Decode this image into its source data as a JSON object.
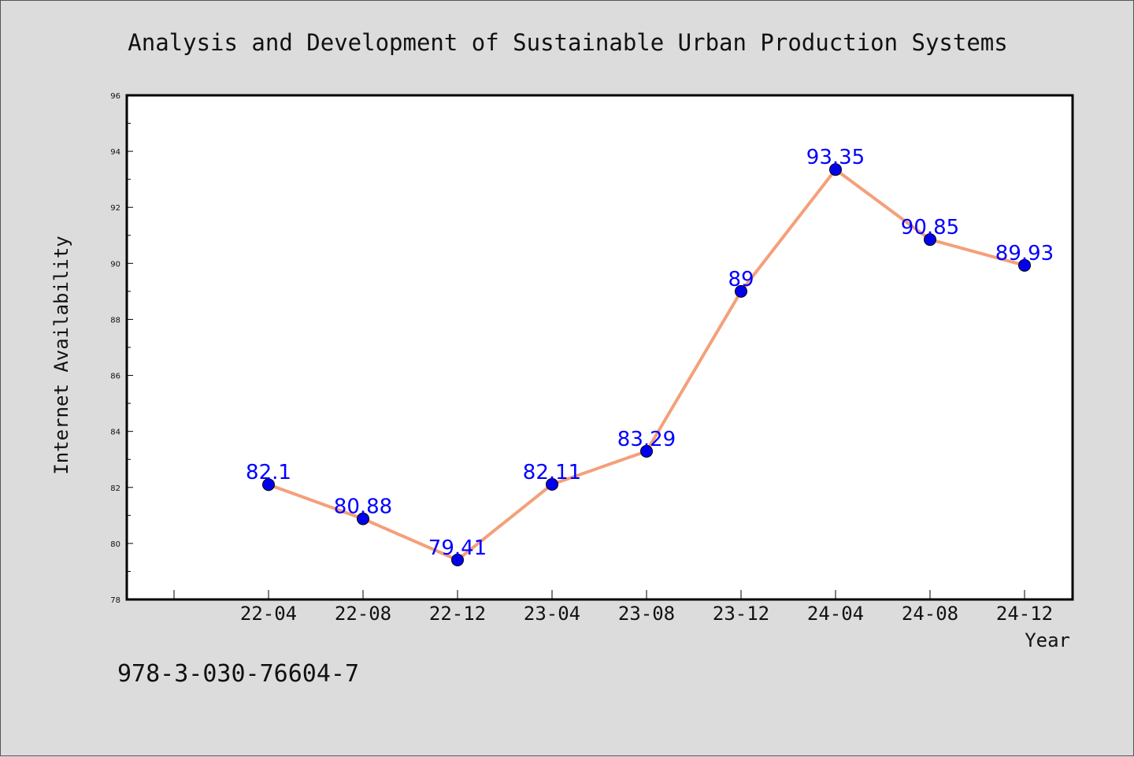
{
  "chart_data": {
    "type": "line",
    "title": "Analysis and Development of Sustainable Urban Production Systems",
    "xlabel": "Year",
    "ylabel": "Internet Availability",
    "categories": [
      "22-04",
      "22-08",
      "22-12",
      "23-04",
      "23-08",
      "23-12",
      "24-04",
      "24-08",
      "24-12"
    ],
    "series": [
      {
        "values": [
          82.1,
          80.88,
          79.41,
          82.11,
          83.29,
          89,
          93.35,
          90.85,
          89.93
        ],
        "line_color": "#f4a07a",
        "marker_color": "#0000ee"
      }
    ],
    "data_labels": [
      "82.1",
      "80.88",
      "79.41",
      "82.11",
      "83.29",
      "89",
      "93.35",
      "90.85",
      "89.93"
    ],
    "ylim": [
      78,
      96
    ],
    "yticks": [
      78,
      80,
      82,
      84,
      86,
      88,
      90,
      92,
      94,
      96
    ],
    "grid": false,
    "label_color": "#0000ff"
  },
  "footer": {
    "isbn": "978-3-030-76604-7"
  }
}
